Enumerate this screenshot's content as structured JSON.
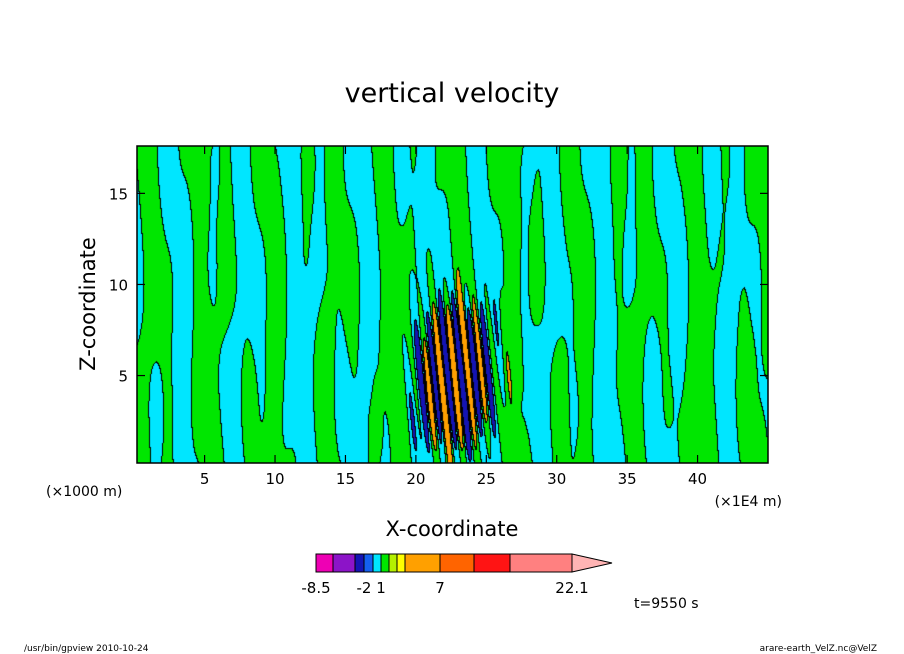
{
  "chart_data": {
    "type": "heatmap",
    "title": "vertical velocity",
    "xlabel": "X-coordinate",
    "ylabel": "Z-coordinate",
    "x_unit_left": "(×1000 m)",
    "x_unit_right": "(×1E4 m)",
    "x_ticks": [
      5,
      10,
      15,
      20,
      25,
      30,
      35,
      40
    ],
    "x_tick_labels": [
      "5",
      "10",
      "15",
      "20",
      "25",
      "30",
      "35",
      "40"
    ],
    "y_ticks": [
      5,
      10,
      15
    ],
    "y_tick_labels": [
      "5",
      "10",
      "15"
    ],
    "xlim": [
      0.2,
      45
    ],
    "ylim": [
      0.2,
      17.6
    ],
    "colorbar": {
      "colors": [
        "#ee00b4",
        "#8c14c8",
        "#1414b4",
        "#1460f0",
        "#00e6ff",
        "#00e600",
        "#b4f000",
        "#ffff00",
        "#ffa000",
        "#ff6400",
        "#ff1414",
        "#ff8080",
        "#ffb4b4"
      ],
      "labels": [
        "-8.5",
        "-2",
        "1",
        "7",
        "22.1"
      ]
    },
    "time_label": "t=9550 s",
    "colors": {
      "negative": "#00e6ff",
      "positive": "#00e600",
      "core_negative": "#1414b4",
      "core_positive": "#ffa000",
      "contour": "#000000"
    }
  },
  "footer": {
    "left": "/usr/bin/gpview   2010-10-24",
    "right": "arare-earth_VelZ.nc@VelZ"
  }
}
